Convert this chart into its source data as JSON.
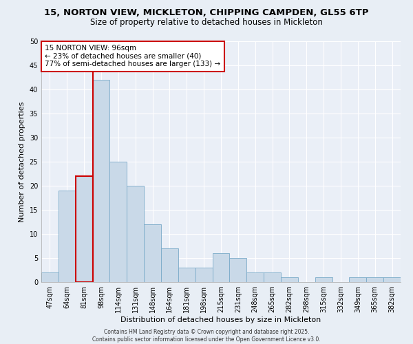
{
  "title_line1": "15, NORTON VIEW, MICKLETON, CHIPPING CAMPDEN, GL55 6TP",
  "title_line2": "Size of property relative to detached houses in Mickleton",
  "xlabel": "Distribution of detached houses by size in Mickleton",
  "ylabel": "Number of detached properties",
  "categories": [
    "47sqm",
    "64sqm",
    "81sqm",
    "98sqm",
    "114sqm",
    "131sqm",
    "148sqm",
    "164sqm",
    "181sqm",
    "198sqm",
    "215sqm",
    "231sqm",
    "248sqm",
    "265sqm",
    "282sqm",
    "298sqm",
    "315sqm",
    "332sqm",
    "349sqm",
    "365sqm",
    "382sqm"
  ],
  "values": [
    2,
    19,
    22,
    42,
    25,
    20,
    12,
    7,
    3,
    3,
    6,
    5,
    2,
    2,
    1,
    0,
    1,
    0,
    1,
    1,
    1
  ],
  "bar_color": "#c9d9e8",
  "bar_edge_color": "#7aaac8",
  "highlight_bar_index": 2,
  "highlight_bar_edge_color": "#cc0000",
  "vline_color": "#cc0000",
  "ylim": [
    0,
    50
  ],
  "yticks": [
    0,
    5,
    10,
    15,
    20,
    25,
    30,
    35,
    40,
    45,
    50
  ],
  "annotation_title": "15 NORTON VIEW: 96sqm",
  "annotation_line1": "← 23% of detached houses are smaller (40)",
  "annotation_line2": "77% of semi-detached houses are larger (133) →",
  "annotation_box_color": "#ffffff",
  "annotation_box_edge_color": "#cc0000",
  "footer_text": "Contains HM Land Registry data © Crown copyright and database right 2025.\nContains public sector information licensed under the Open Government Licence v3.0.",
  "background_color": "#e8eef5",
  "plot_background_color": "#eaeff7",
  "grid_color": "#ffffff",
  "title_fontsize": 9.5,
  "subtitle_fontsize": 8.5,
  "axis_label_fontsize": 8,
  "tick_fontsize": 7,
  "annotation_fontsize": 7.5,
  "footer_fontsize": 5.5
}
